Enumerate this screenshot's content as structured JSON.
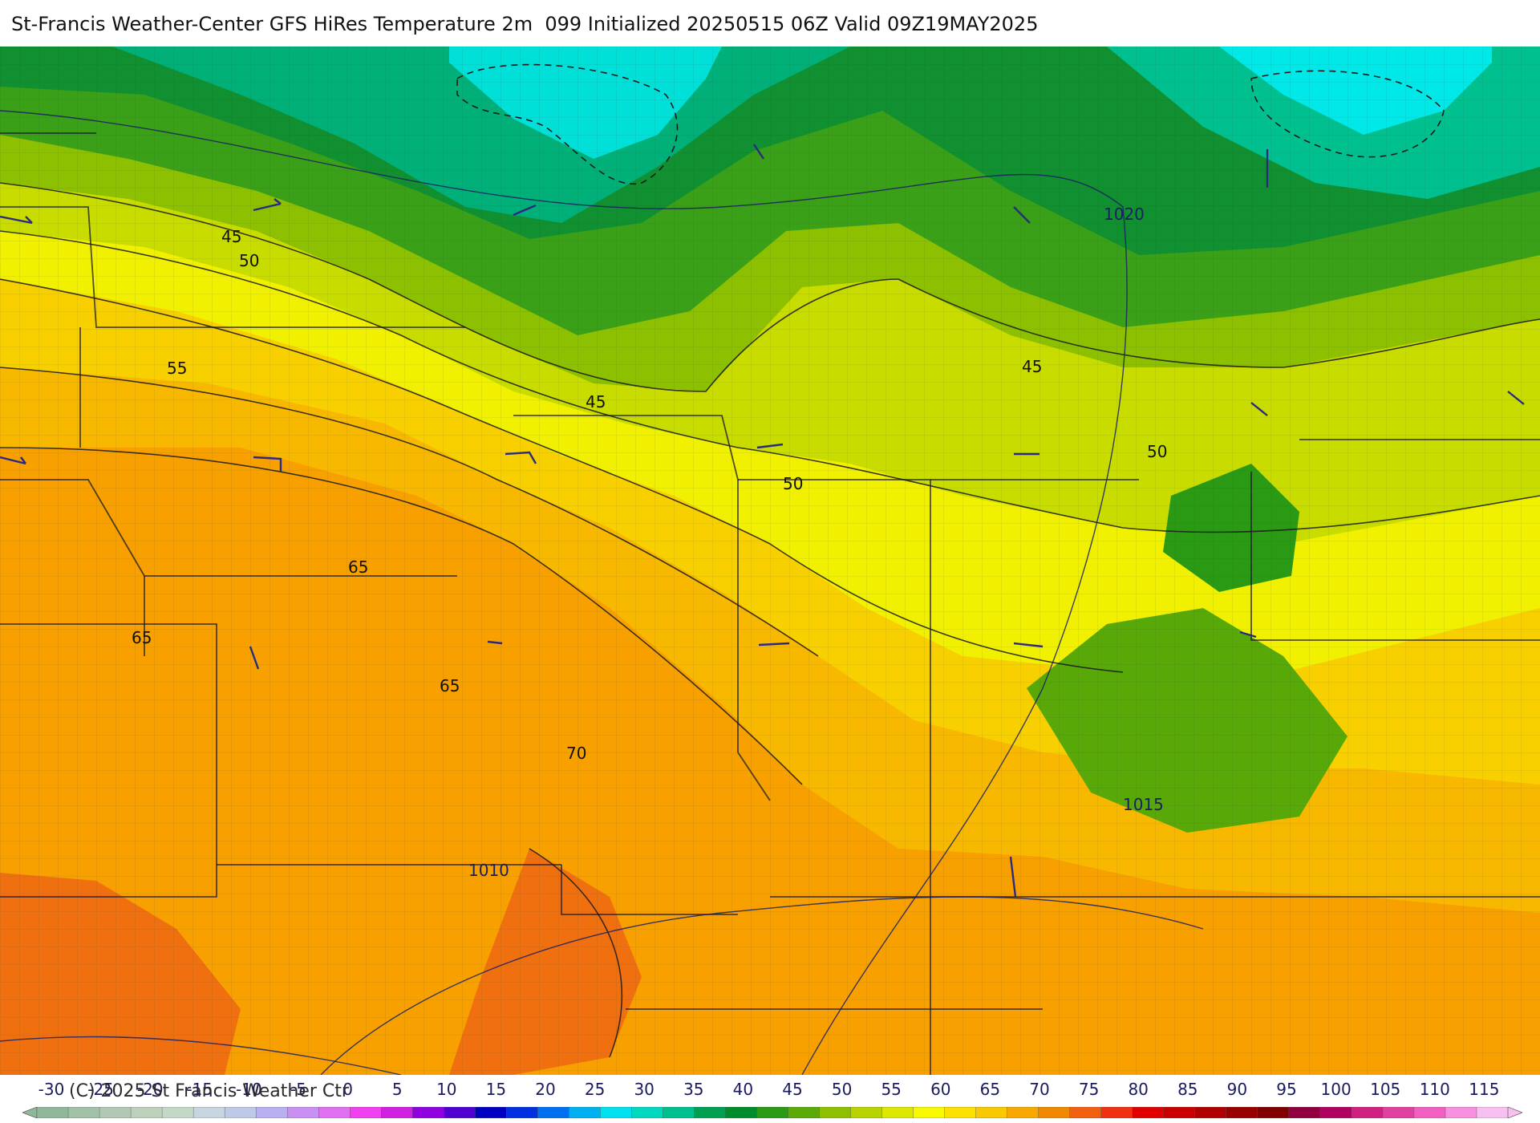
{
  "header": {
    "title": "St-Francis Weather-Center GFS HiRes Temperature 2m  099 Initialized 20250515 06Z Valid 09Z19MAY2025"
  },
  "footer": {
    "copyright": "(C) 2025 St Francis Weather Ctr"
  },
  "colorbar": {
    "ticks": [
      "-30",
      "-25",
      "-20",
      "-15",
      "-10",
      "-5",
      "0",
      "5",
      "10",
      "15",
      "20",
      "25",
      "30",
      "35",
      "40",
      "45",
      "50",
      "55",
      "60",
      "65",
      "70",
      "75",
      "80",
      "85",
      "90",
      "95",
      "100",
      "105",
      "110",
      "115"
    ],
    "colors": [
      "#8fb89a",
      "#a0c0a8",
      "#b0c8b4",
      "#bcd0bc",
      "#c4d8c8",
      "#c8d4e0",
      "#c0c8e8",
      "#b8b0f0",
      "#c890f0",
      "#e070f0",
      "#f040f0",
      "#d020e0",
      "#9000e0",
      "#5000d0",
      "#0000c0",
      "#0030e0",
      "#0070f0",
      "#00b0f0",
      "#00e0f0",
      "#00d8c0",
      "#00c090",
      "#00a050",
      "#008c2a",
      "#2a9a14",
      "#5aaa08",
      "#8cc000",
      "#b8d400",
      "#dce800",
      "#f8f800",
      "#fce000",
      "#f8c800",
      "#f8a800",
      "#f08800",
      "#f06010",
      "#f03010",
      "#e00000",
      "#c80000",
      "#b00000",
      "#980000",
      "#800000",
      "#900040",
      "#b00060",
      "#d02080",
      "#e040a0",
      "#f060c0",
      "#f890e0",
      "#f8c0f0"
    ]
  },
  "map_labels": {
    "isotherms": [
      {
        "id": "iso-45-nw",
        "text": "45"
      },
      {
        "id": "iso-50-nw",
        "text": "50"
      },
      {
        "id": "iso-55-w",
        "text": "55"
      },
      {
        "id": "iso-45-c",
        "text": "45"
      },
      {
        "id": "iso-50-c",
        "text": "50"
      },
      {
        "id": "iso-45-ne",
        "text": "45"
      },
      {
        "id": "iso-50-e",
        "text": "50"
      },
      {
        "id": "iso-65-a",
        "text": "65"
      },
      {
        "id": "iso-65-b",
        "text": "65"
      },
      {
        "id": "iso-65-c",
        "text": "65"
      },
      {
        "id": "iso-70",
        "text": "70"
      }
    ],
    "isobars": [
      {
        "id": "isobar-1020",
        "text": "1020"
      },
      {
        "id": "isobar-1015",
        "text": "1015"
      },
      {
        "id": "isobar-1010",
        "text": "1010"
      }
    ]
  }
}
